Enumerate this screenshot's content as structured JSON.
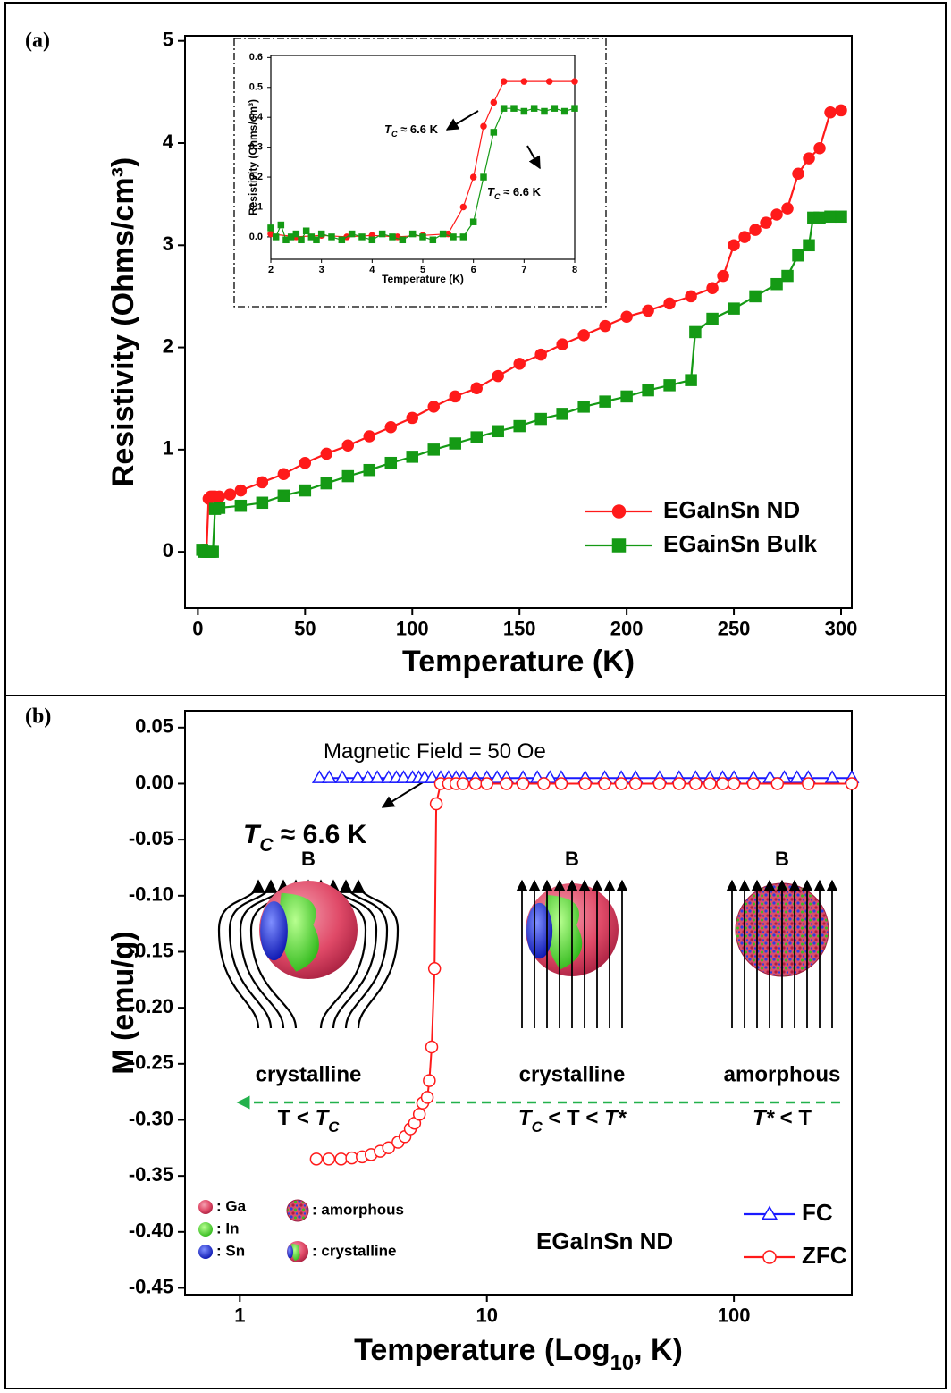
{
  "chart_data": [
    {
      "type": "line",
      "panel_label": "(a)",
      "xlabel": "Temperature (K)",
      "ylabel": "Resistivity (Ohms/cm³)",
      "xlim": [
        -6,
        305
      ],
      "ylim": [
        -0.55,
        5.05
      ],
      "xticks": [
        0,
        50,
        100,
        150,
        200,
        250,
        300
      ],
      "yticks": [
        0,
        1,
        2,
        3,
        4,
        5
      ],
      "legend": "lower right",
      "series": [
        {
          "name": "EGaInSn ND",
          "color": "#ff1a1a",
          "marker": "circle",
          "marker_fill": "filled",
          "x": [
            2,
            3,
            4,
            5,
            6,
            7,
            8,
            10,
            15,
            20,
            30,
            40,
            50,
            60,
            70,
            80,
            90,
            100,
            110,
            120,
            130,
            140,
            150,
            160,
            170,
            180,
            190,
            200,
            210,
            220,
            230,
            240,
            245,
            250,
            255,
            260,
            265,
            270,
            275,
            280,
            285,
            290,
            295,
            300
          ],
          "values": [
            0.02,
            0.02,
            0,
            0.52,
            0.54,
            0.54,
            0.54,
            0.54,
            0.56,
            0.6,
            0.68,
            0.76,
            0.87,
            0.96,
            1.04,
            1.13,
            1.22,
            1.31,
            1.42,
            1.52,
            1.6,
            1.72,
            1.84,
            1.93,
            2.03,
            2.12,
            2.21,
            2.3,
            2.36,
            2.43,
            2.5,
            2.58,
            2.7,
            3.0,
            3.08,
            3.15,
            3.22,
            3.3,
            3.36,
            3.7,
            3.85,
            3.95,
            4.3,
            4.32
          ]
        },
        {
          "name": "EGainSn Bulk",
          "color": "#159a15",
          "marker": "square",
          "marker_fill": "filled",
          "x": [
            2,
            3,
            4,
            5,
            6,
            7,
            8,
            10,
            20,
            30,
            40,
            50,
            60,
            70,
            80,
            90,
            100,
            110,
            120,
            130,
            140,
            150,
            160,
            170,
            180,
            190,
            200,
            210,
            220,
            230,
            232,
            240,
            250,
            260,
            270,
            275,
            280,
            285,
            287,
            290,
            295,
            300
          ],
          "values": [
            0.02,
            0,
            0,
            0,
            0,
            0,
            0.42,
            0.43,
            0.45,
            0.48,
            0.55,
            0.6,
            0.67,
            0.74,
            0.8,
            0.87,
            0.93,
            1.0,
            1.06,
            1.12,
            1.18,
            1.23,
            1.3,
            1.35,
            1.42,
            1.47,
            1.52,
            1.58,
            1.63,
            1.68,
            2.15,
            2.28,
            2.38,
            2.5,
            2.62,
            2.7,
            2.9,
            3.0,
            3.27,
            3.27,
            3.28,
            3.28
          ]
        }
      ]
    },
    {
      "type": "line",
      "xlabel": "Temperature (K)",
      "ylabel": "Resistivity (Ohms/cm³)",
      "xlim": [
        2,
        8
      ],
      "ylim": [
        -0.075,
        0.607
      ],
      "xticks": [
        2,
        3,
        4,
        5,
        6,
        7,
        8
      ],
      "yticks": [
        {
          "value": 0,
          "label": "0.0"
        },
        0.1,
        0.2,
        0.3,
        0.4,
        0.5,
        0.6
      ],
      "annotations": [
        [
          {
            "text": "T",
            "italic": true
          },
          {
            "sub": "C",
            "italic": true
          },
          {
            "text": " ≈ 6.6 K"
          }
        ],
        [
          {
            "text": "T",
            "italic": true
          },
          {
            "sub": "C",
            "italic": true
          },
          {
            "text": " ≈ 6.6 K"
          }
        ]
      ],
      "series": [
        {
          "color": "#ff1a1a",
          "marker": "circle",
          "marker_fill": "filled",
          "x": [
            2,
            2.5,
            3,
            3.5,
            4,
            4.5,
            5,
            5.5,
            5.8,
            6.0,
            6.2,
            6.4,
            6.6,
            7,
            7.5,
            8
          ],
          "values": [
            0.01,
            0,
            0.005,
            0,
            0.005,
            0,
            0.005,
            0.01,
            0.1,
            0.2,
            0.37,
            0.45,
            0.52,
            0.52,
            0.52,
            0.52
          ]
        },
        {
          "color": "#159a15",
          "marker": "square",
          "marker_fill": "filled",
          "x": [
            2,
            2.1,
            2.2,
            2.3,
            2.4,
            2.5,
            2.6,
            2.7,
            2.8,
            2.9,
            3,
            3.2,
            3.4,
            3.6,
            3.8,
            4,
            4.2,
            4.4,
            4.6,
            4.8,
            5,
            5.2,
            5.4,
            5.6,
            5.8,
            6,
            6.2,
            6.4,
            6.6,
            6.8,
            7,
            7.2,
            7.4,
            7.6,
            7.8,
            8
          ],
          "values": [
            0.03,
            0,
            0.04,
            -0.01,
            0,
            0.01,
            -0.01,
            0.02,
            0,
            -0.01,
            0.01,
            0,
            -0.01,
            0.01,
            0,
            -0.01,
            0.01,
            0,
            -0.01,
            0.01,
            0,
            -0.01,
            0.01,
            0,
            0,
            0.05,
            0.2,
            0.35,
            0.43,
            0.43,
            0.42,
            0.43,
            0.42,
            0.43,
            0.42,
            0.43
          ]
        }
      ]
    },
    {
      "type": "line",
      "panel_label": "(b)",
      "log_x": true,
      "xlabel": [
        {
          "text": "Temperature (Log"
        },
        {
          "sub": "10"
        },
        {
          "text": ", K)"
        }
      ],
      "ylabel": "M (emu/g)",
      "xlim": [
        0.6,
        300
      ],
      "ylim": [
        -0.456,
        0.065
      ],
      "xticks": [
        1,
        10,
        100
      ],
      "yticks": [
        0.05,
        {
          "value": 0,
          "label": "0.00"
        },
        -0.05,
        {
          "value": -0.1,
          "label": "-0.10"
        },
        -0.15,
        {
          "value": -0.2,
          "label": "-0.20"
        },
        -0.25,
        {
          "value": -0.3,
          "label": "-0.30"
        },
        -0.35,
        {
          "value": -0.4,
          "label": "-0.40"
        },
        -0.45
      ],
      "legend": "lower right",
      "annotations": [
        [
          {
            "text": "Magnetic Field = 50 Oe"
          }
        ],
        [
          {
            "text": "T",
            "italic": true
          },
          {
            "sub": "C",
            "italic": true
          },
          {
            "text": " ≈ 6.6 K"
          }
        ],
        [
          {
            "text": "EGaInSn ND"
          }
        ]
      ],
      "series": [
        {
          "name": "FC",
          "color": "#1a1aff",
          "marker": "triangle",
          "marker_fill": "open",
          "x": [
            2.1,
            2.3,
            2.6,
            3,
            3.3,
            3.6,
            4,
            4.3,
            4.6,
            5,
            5.3,
            5.6,
            6,
            6.5,
            7,
            7.5,
            8,
            9,
            10,
            11,
            12,
            14,
            16,
            18,
            20,
            25,
            30,
            35,
            40,
            50,
            60,
            70,
            80,
            90,
            100,
            120,
            140,
            160,
            180,
            200,
            250,
            300
          ],
          "values": [
            0.005,
            0.005,
            0.005,
            0.005,
            0.005,
            0.005,
            0.005,
            0.005,
            0.005,
            0.005,
            0.005,
            0.005,
            0.005,
            0.005,
            0.005,
            0.005,
            0.005,
            0.005,
            0.005,
            0.005,
            0.005,
            0.005,
            0.005,
            0.005,
            0.005,
            0.005,
            0.005,
            0.005,
            0.005,
            0.005,
            0.005,
            0.005,
            0.005,
            0.005,
            0.005,
            0.005,
            0.005,
            0.005,
            0.005,
            0.005,
            0.005,
            0.005
          ]
        },
        {
          "name": "ZFC",
          "color": "#ff1a1a",
          "marker": "circle",
          "marker_fill": "open",
          "x": [
            2.04,
            2.29,
            2.57,
            2.84,
            3.13,
            3.4,
            3.7,
            4.0,
            4.37,
            4.66,
            4.9,
            5.1,
            5.33,
            5.5,
            5.74,
            5.85,
            5.98,
            6.14,
            6.24,
            6.5,
            7,
            7.5,
            8,
            9,
            10,
            12,
            14,
            17,
            20,
            25,
            30,
            35,
            40,
            50,
            60,
            70,
            80,
            90,
            100,
            120,
            150,
            200,
            300
          ],
          "values": [
            -0.335,
            -0.335,
            -0.335,
            -0.334,
            -0.333,
            -0.331,
            -0.328,
            -0.325,
            -0.32,
            -0.315,
            -0.308,
            -0.303,
            -0.295,
            -0.285,
            -0.28,
            -0.265,
            -0.235,
            -0.165,
            -0.018,
            0,
            0,
            0,
            0,
            0,
            0,
            0,
            0,
            0,
            0,
            0,
            0,
            0,
            0,
            0,
            0,
            0,
            0,
            0,
            0,
            0,
            0,
            0,
            0
          ]
        }
      ]
    }
  ],
  "illustration": {
    "field_label": "B",
    "states": [
      {
        "phase": "crystalline",
        "condition": [
          {
            "text": "T < "
          },
          {
            "text": "T",
            "italic": true
          },
          {
            "sub": "C",
            "italic": true
          }
        ]
      },
      {
        "phase": "crystalline",
        "condition": [
          {
            "text": "T",
            "italic": true
          },
          {
            "sub": "C",
            "italic": true
          },
          {
            "text": " < T < "
          },
          {
            "text": "T*",
            "italic": true
          }
        ]
      },
      {
        "phase": "amorphous",
        "condition": [
          {
            "text": "T*",
            "italic": true
          },
          {
            "text": " < T"
          }
        ]
      }
    ],
    "key": [
      ": Ga",
      ": In",
      ": Sn",
      ": amorphous",
      ": crystalline"
    ]
  }
}
